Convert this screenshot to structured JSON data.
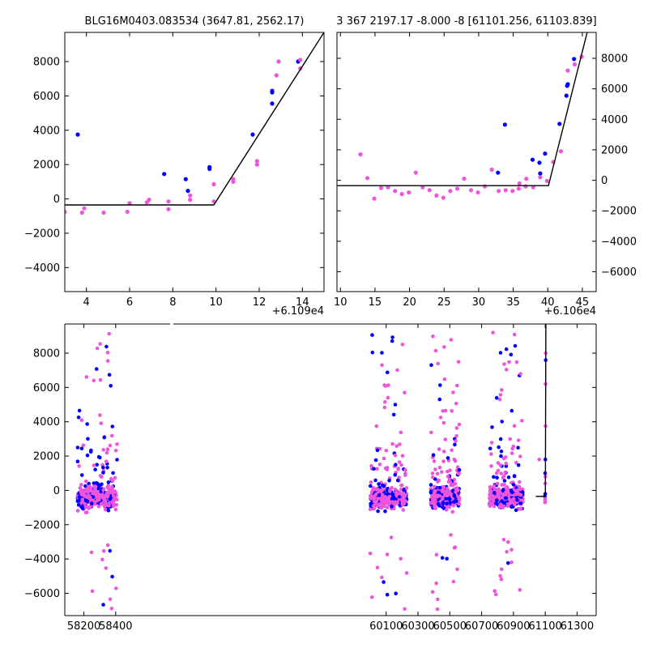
{
  "colors": {
    "blue": "#0000ff",
    "pink": "#ee55dd",
    "model": "#000000",
    "frame": "#000000"
  },
  "chart_data": [
    {
      "type": "scatter",
      "title": "BLG16M0403.083534 (3647.81, 2562.17)",
      "xlim": [
        3.0,
        15.0
      ],
      "ylim": [
        -5400,
        9700
      ],
      "xticks": [
        4,
        6,
        8,
        10,
        12,
        14
      ],
      "yticks": [
        -4000,
        -2000,
        0,
        2000,
        4000,
        6000,
        8000
      ],
      "offset_text": "+6.109e4",
      "ytick_side": "left",
      "series": [
        {
          "color": "blue",
          "points": [
            [
              3.6,
              3750
            ],
            [
              7.6,
              1450
            ],
            [
              8.6,
              1150
            ],
            [
              8.7,
              470
            ],
            [
              9.7,
              1850
            ],
            [
              9.7,
              1750
            ],
            [
              11.7,
              3750
            ],
            [
              12.6,
              5550
            ],
            [
              12.6,
              6200
            ],
            [
              12.6,
              6300
            ],
            [
              13.8,
              8000
            ]
          ]
        },
        {
          "color": "pink",
          "points": [
            [
              3.0,
              -750
            ],
            [
              3.8,
              -800
            ],
            [
              3.9,
              -550
            ],
            [
              4.8,
              -800
            ],
            [
              5.9,
              -750
            ],
            [
              6.0,
              -250
            ],
            [
              6.8,
              -200
            ],
            [
              6.9,
              -50
            ],
            [
              7.8,
              -600
            ],
            [
              7.8,
              -150
            ],
            [
              8.8,
              -50
            ],
            [
              8.8,
              200
            ],
            [
              9.9,
              850
            ],
            [
              9.9,
              -150
            ],
            [
              10.8,
              1000
            ],
            [
              10.8,
              1150
            ],
            [
              11.9,
              2000
            ],
            [
              11.9,
              2200
            ],
            [
              12.8,
              7200
            ],
            [
              12.9,
              8000
            ],
            [
              13.9,
              7600
            ],
            [
              13.9,
              8100
            ]
          ]
        }
      ],
      "model": [
        [
          3.0,
          -350
        ],
        [
          9.9,
          -350
        ],
        [
          15.0,
          9700
        ]
      ]
    },
    {
      "type": "scatter",
      "title": "3 367 2197.17 -8.000 -8 [61101.256, 61103.839]",
      "xlim": [
        9.5,
        47.0
      ],
      "ylim": [
        -7300,
        9700
      ],
      "xticks": [
        10,
        15,
        20,
        25,
        30,
        35,
        40,
        45
      ],
      "yticks": [
        -6000,
        -4000,
        -2000,
        0,
        2000,
        4000,
        6000,
        8000
      ],
      "offset_text": "+6.106e4",
      "ytick_side": "right",
      "series": [
        {
          "color": "blue",
          "points": [
            [
              33.8,
              3650
            ],
            [
              32.8,
              500
            ],
            [
              37.8,
              1350
            ],
            [
              38.8,
              1150
            ],
            [
              38.9,
              450
            ],
            [
              39.6,
              1750
            ],
            [
              41.7,
              3700
            ],
            [
              42.7,
              5550
            ],
            [
              42.8,
              6200
            ],
            [
              42.9,
              6300
            ],
            [
              43.8,
              7950
            ]
          ]
        },
        {
          "color": "pink",
          "points": [
            [
              12.9,
              1700
            ],
            [
              13.9,
              150
            ],
            [
              14.9,
              -1200
            ],
            [
              15.9,
              -500
            ],
            [
              16.9,
              -450
            ],
            [
              17.9,
              -700
            ],
            [
              18.9,
              -900
            ],
            [
              19.9,
              -800
            ],
            [
              20.9,
              500
            ],
            [
              21.9,
              -450
            ],
            [
              22.9,
              -650
            ],
            [
              23.9,
              -1000
            ],
            [
              24.9,
              -1150
            ],
            [
              25.9,
              -700
            ],
            [
              26.9,
              -550
            ],
            [
              27.9,
              100
            ],
            [
              28.9,
              -650
            ],
            [
              29.9,
              -800
            ],
            [
              30.9,
              -400
            ],
            [
              31.9,
              700
            ],
            [
              32.9,
              -700
            ],
            [
              33.9,
              -650
            ],
            [
              34.9,
              -700
            ],
            [
              35.8,
              -550
            ],
            [
              35.9,
              -200
            ],
            [
              36.8,
              -400
            ],
            [
              36.9,
              100
            ],
            [
              37.9,
              -450
            ],
            [
              38.9,
              200
            ],
            [
              39.9,
              -50
            ],
            [
              40.8,
              1200
            ],
            [
              41.9,
              1900
            ],
            [
              42.9,
              7200
            ],
            [
              43.9,
              7600
            ],
            [
              44.9,
              8100
            ]
          ]
        }
      ],
      "model": [
        [
          9.5,
          -350
        ],
        [
          40.1,
          -350
        ],
        [
          45.7,
          9700
        ]
      ]
    },
    {
      "type": "scatter",
      "title": "",
      "xlim": [
        58080,
        61420
      ],
      "ylim": [
        -7300,
        9700
      ],
      "xticks": [
        58200,
        58400,
        60100,
        60300,
        60500,
        60700,
        60900,
        61100,
        61300
      ],
      "yticks": [
        -6000,
        -4000,
        -2000,
        0,
        2000,
        4000,
        6000,
        8000
      ],
      "axis_break": "top spine broken near x=58490 (gap)",
      "ytick_side": "left",
      "seasons": [
        [
          58160,
          58410
        ],
        [
          60000,
          60230
        ],
        [
          60380,
          60560
        ],
        [
          60750,
          60960
        ]
      ],
      "model": [
        [
          61040,
          -350
        ],
        [
          61101,
          -350
        ],
        [
          61104,
          9700
        ]
      ]
    }
  ]
}
